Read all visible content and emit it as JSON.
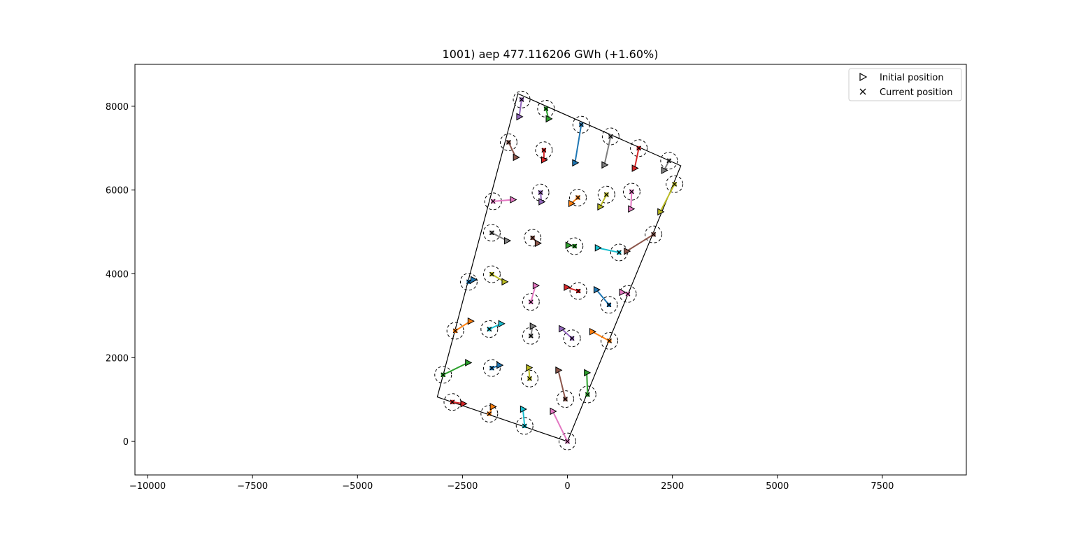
{
  "chart_data": {
    "type": "scatter",
    "title": "1001) aep 477.116206 GWh (+1.60%)",
    "xlabel": "",
    "ylabel": "",
    "xlim": [
      -10300,
      9500
    ],
    "ylim": [
      -800,
      9000
    ],
    "xticks": [
      -10000,
      -7500,
      -5000,
      -2500,
      0,
      2500,
      5000,
      7500
    ],
    "xtick_labels": [
      "−10000",
      "−7500",
      "−5000",
      "−2500",
      "0",
      "2500",
      "5000",
      "7500"
    ],
    "yticks": [
      0,
      2000,
      4000,
      6000,
      8000
    ],
    "ytick_labels": [
      "0",
      "2000",
      "4000",
      "6000",
      "8000"
    ],
    "grid": false,
    "legend": {
      "placement": "top-right",
      "entries": [
        {
          "label": "Initial position",
          "marker": "triangle-right"
        },
        {
          "label": "Current position",
          "marker": "x"
        }
      ]
    },
    "boundary": [
      [
        -3100,
        1060
      ],
      [
        0,
        0
      ],
      [
        2700,
        6580
      ],
      [
        -1180,
        8300
      ]
    ],
    "turbines": [
      {
        "init": [
          -1150,
          7750
        ],
        "cur": [
          -1090,
          8160
        ],
        "color": "#9467bd"
      },
      {
        "init": [
          -450,
          7700
        ],
        "cur": [
          -510,
          7940
        ],
        "color": "#2ca02c"
      },
      {
        "init": [
          180,
          6650
        ],
        "cur": [
          330,
          7560
        ],
        "color": "#1f77b4"
      },
      {
        "init": [
          880,
          6600
        ],
        "cur": [
          1030,
          7280
        ],
        "color": "#7f7f7f"
      },
      {
        "init": [
          1600,
          6520
        ],
        "cur": [
          1700,
          7000
        ],
        "color": "#d62728"
      },
      {
        "init": [
          2300,
          6470
        ],
        "cur": [
          2420,
          6700
        ],
        "color": "#7f7f7f"
      },
      {
        "init": [
          2210,
          5480
        ],
        "cur": [
          2550,
          6140
        ],
        "color": "#bcbd22"
      },
      {
        "init": [
          -1230,
          6780
        ],
        "cur": [
          -1400,
          7140
        ],
        "color": "#8c564b"
      },
      {
        "init": [
          -560,
          6720
        ],
        "cur": [
          -560,
          6950
        ],
        "color": "#d62728"
      },
      {
        "init": [
          -1300,
          5770
        ],
        "cur": [
          -1770,
          5730
        ],
        "color": "#e377c2"
      },
      {
        "init": [
          -620,
          5720
        ],
        "cur": [
          -640,
          5940
        ],
        "color": "#9467bd"
      },
      {
        "init": [
          90,
          5680
        ],
        "cur": [
          250,
          5820
        ],
        "color": "#ff7f0e"
      },
      {
        "init": [
          780,
          5600
        ],
        "cur": [
          930,
          5890
        ],
        "color": "#bcbd22"
      },
      {
        "init": [
          1510,
          5550
        ],
        "cur": [
          1530,
          5960
        ],
        "color": "#e377c2"
      },
      {
        "init": [
          -1440,
          4790
        ],
        "cur": [
          -1800,
          4980
        ],
        "color": "#7f7f7f"
      },
      {
        "init": [
          -710,
          4730
        ],
        "cur": [
          -830,
          4860
        ],
        "color": "#8c564b"
      },
      {
        "init": [
          20,
          4680
        ],
        "cur": [
          170,
          4660
        ],
        "color": "#2ca02c"
      },
      {
        "init": [
          720,
          4620
        ],
        "cur": [
          1230,
          4510
        ],
        "color": "#17becf"
      },
      {
        "init": [
          1410,
          4540
        ],
        "cur": [
          2050,
          4940
        ],
        "color": "#8c564b"
      },
      {
        "init": [
          -2240,
          3860
        ],
        "cur": [
          -2350,
          3810
        ],
        "color": "#1f77b4"
      },
      {
        "init": [
          -1500,
          3810
        ],
        "cur": [
          -1800,
          3990
        ],
        "color": "#bcbd22"
      },
      {
        "init": [
          -760,
          3720
        ],
        "cur": [
          -870,
          3330
        ],
        "color": "#e377c2"
      },
      {
        "init": [
          -20,
          3680
        ],
        "cur": [
          260,
          3590
        ],
        "color": "#d62728"
      },
      {
        "init": [
          690,
          3620
        ],
        "cur": [
          990,
          3260
        ],
        "color": "#1f77b4"
      },
      {
        "init": [
          1300,
          3560
        ],
        "cur": [
          1440,
          3520
        ],
        "color": "#e377c2"
      },
      {
        "init": [
          -2310,
          2870
        ],
        "cur": [
          -2670,
          2640
        ],
        "color": "#ff7f0e"
      },
      {
        "init": [
          -1580,
          2810
        ],
        "cur": [
          -1860,
          2680
        ],
        "color": "#17becf"
      },
      {
        "init": [
          -830,
          2750
        ],
        "cur": [
          -870,
          2520
        ],
        "color": "#7f7f7f"
      },
      {
        "init": [
          -140,
          2690
        ],
        "cur": [
          110,
          2460
        ],
        "color": "#9467bd"
      },
      {
        "init": [
          590,
          2620
        ],
        "cur": [
          1000,
          2400
        ],
        "color": "#ff7f0e"
      },
      {
        "init": [
          -2370,
          1880
        ],
        "cur": [
          -2960,
          1590
        ],
        "color": "#2ca02c"
      },
      {
        "init": [
          -1620,
          1820
        ],
        "cur": [
          -1800,
          1750
        ],
        "color": "#1f77b4"
      },
      {
        "init": [
          -920,
          1760
        ],
        "cur": [
          -900,
          1500
        ],
        "color": "#bcbd22"
      },
      {
        "init": [
          -220,
          1700
        ],
        "cur": [
          -50,
          1010
        ],
        "color": "#8c564b"
      },
      {
        "init": [
          460,
          1640
        ],
        "cur": [
          480,
          1120
        ],
        "color": "#2ca02c"
      },
      {
        "init": [
          -2480,
          900
        ],
        "cur": [
          -2740,
          940
        ],
        "color": "#d62728"
      },
      {
        "init": [
          -1780,
          830
        ],
        "cur": [
          -1860,
          660
        ],
        "color": "#ff7f0e"
      },
      {
        "init": [
          -1060,
          770
        ],
        "cur": [
          -1020,
          370
        ],
        "color": "#17becf"
      },
      {
        "init": [
          -350,
          720
        ],
        "cur": [
          0,
          0
        ],
        "color": "#e377c2"
      }
    ]
  }
}
